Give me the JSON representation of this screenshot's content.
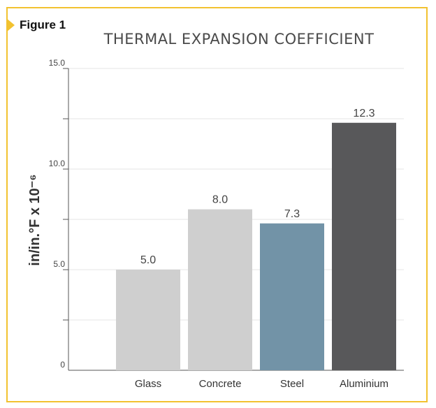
{
  "figure_label": "Figure 1",
  "colors": {
    "frame": "#f2c230",
    "light_bar": "#cfcfcf",
    "steel_bar": "#7293a7",
    "aluminium_bar": "#58585a"
  },
  "chart_data": {
    "type": "bar",
    "title": "THERMAL EXPANSION COEFFICIENT",
    "xlabel": "",
    "ylabel": "in/in.°F x 10⁻⁶",
    "ylim": [
      0,
      15
    ],
    "grid": true,
    "y_ticks": [
      {
        "value": 0,
        "label": "0"
      },
      {
        "value": 5,
        "label": "5.0"
      },
      {
        "value": 10,
        "label": "10.0"
      },
      {
        "value": 15,
        "label": "15.0"
      }
    ],
    "categories": [
      "Glass",
      "Concrete",
      "Steel",
      "Aluminium"
    ],
    "values": [
      5.0,
      8.0,
      7.3,
      12.3
    ],
    "value_labels": [
      "5.0",
      "8.0",
      "7.3",
      "12.3"
    ],
    "bar_colors": [
      "#cfcfcf",
      "#cfcfcf",
      "#7293a7",
      "#58585a"
    ]
  }
}
